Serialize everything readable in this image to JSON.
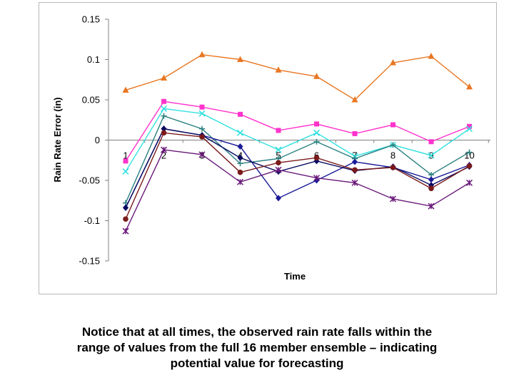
{
  "chart_data": {
    "type": "line",
    "title": "",
    "xlabel": "Time",
    "ylabel": "Rain Rate Error (in)",
    "x": [
      1,
      2,
      3,
      4,
      5,
      6,
      7,
      8,
      9,
      10
    ],
    "ylim": [
      -0.15,
      0.15
    ],
    "yticks": [
      0.15,
      0.1,
      0.05,
      0,
      -0.05,
      -0.1,
      -0.15
    ],
    "ytick_labels": [
      "0.15",
      "0.1",
      "0.05",
      "0",
      "-0.05",
      "-0.1",
      "-0.15"
    ],
    "grid": false,
    "legend": "none",
    "series": [
      {
        "name": "member-orange-triangle",
        "color": "#e87722",
        "marker": "triangle",
        "values": [
          0.062,
          0.077,
          0.106,
          0.1,
          0.087,
          0.079,
          0.05,
          0.096,
          0.104,
          0.066
        ]
      },
      {
        "name": "member-magenta-square",
        "color": "#ff33cc",
        "marker": "square",
        "values": [
          -0.026,
          0.048,
          0.041,
          0.032,
          0.012,
          0.02,
          0.008,
          0.019,
          -0.002,
          0.017
        ]
      },
      {
        "name": "member-cyan-x",
        "color": "#33e0e0",
        "marker": "x",
        "values": [
          -0.039,
          0.039,
          0.033,
          0.009,
          -0.012,
          0.009,
          -0.02,
          -0.006,
          -0.019,
          0.014
        ]
      },
      {
        "name": "member-teal-plus",
        "color": "#2a8080",
        "marker": "plus",
        "values": [
          -0.078,
          0.03,
          0.014,
          -0.029,
          -0.023,
          -0.002,
          -0.023,
          -0.006,
          -0.043,
          -0.015
        ]
      },
      {
        "name": "member-navy-diamond",
        "color": "#1a1a99",
        "marker": "diamond",
        "values": [
          -0.084,
          0.014,
          0.006,
          -0.008,
          -0.072,
          -0.05,
          -0.027,
          -0.034,
          -0.049,
          -0.031
        ]
      },
      {
        "name": "member-darkblue-diamond",
        "color": "#0a0a60",
        "marker": "diamond",
        "values": [
          -0.084,
          0.014,
          0.006,
          -0.022,
          -0.039,
          -0.026,
          -0.038,
          -0.033,
          -0.056,
          -0.033
        ]
      },
      {
        "name": "member-brown-circle",
        "color": "#7a1a1a",
        "marker": "circle",
        "values": [
          -0.098,
          0.009,
          0.004,
          -0.04,
          -0.028,
          -0.022,
          -0.037,
          -0.034,
          -0.06,
          -0.032
        ]
      },
      {
        "name": "member-purple-star",
        "color": "#6a1a7a",
        "marker": "star",
        "values": [
          -0.113,
          -0.012,
          -0.018,
          -0.052,
          -0.037,
          -0.047,
          -0.053,
          -0.073,
          -0.082,
          -0.053
        ]
      }
    ]
  },
  "caption": {
    "line1": "Notice that at all times, the observed rain rate falls within the",
    "line2": "range of values from the full 16 member ensemble – indicating",
    "line3": "potential value for forecasting"
  }
}
